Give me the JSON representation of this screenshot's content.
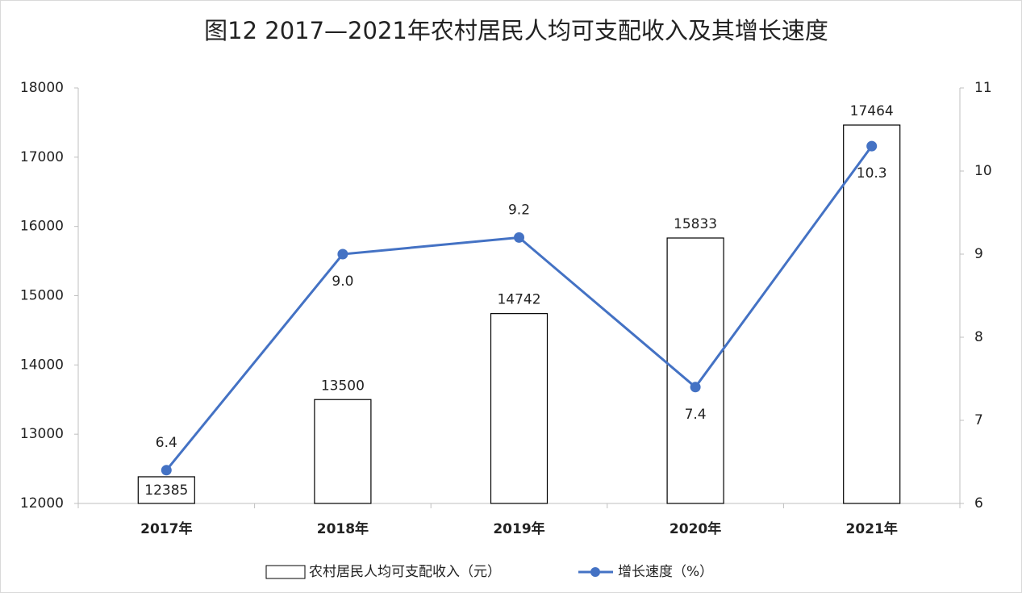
{
  "chart_data": {
    "type": "bar-line",
    "title": "图12  2017—2021年农村居民人均可支配收入及其增长速度",
    "categories": [
      "2017年",
      "2018年",
      "2019年",
      "2020年",
      "2021年"
    ],
    "series": [
      {
        "name": "农村居民人均可支配收入（元）",
        "type": "bar",
        "color": "#ffffff",
        "values": [
          12385,
          13500,
          14742,
          15833,
          17464
        ]
      },
      {
        "name": "增长速度（%）",
        "type": "line",
        "axis": "y2",
        "color": "#4472c4",
        "values": [
          6.4,
          9.0,
          9.2,
          7.4,
          10.3
        ],
        "value_labels": [
          "6.4",
          "9.0",
          "9.2",
          "7.4",
          "10.3"
        ]
      }
    ],
    "ylim": [
      12000,
      18000
    ],
    "yticks": [
      12000,
      13000,
      14000,
      15000,
      16000,
      17000,
      18000
    ],
    "y2lim": [
      6,
      11
    ],
    "y2ticks": [
      6,
      7,
      8,
      9,
      10,
      11
    ],
    "grid": false
  }
}
